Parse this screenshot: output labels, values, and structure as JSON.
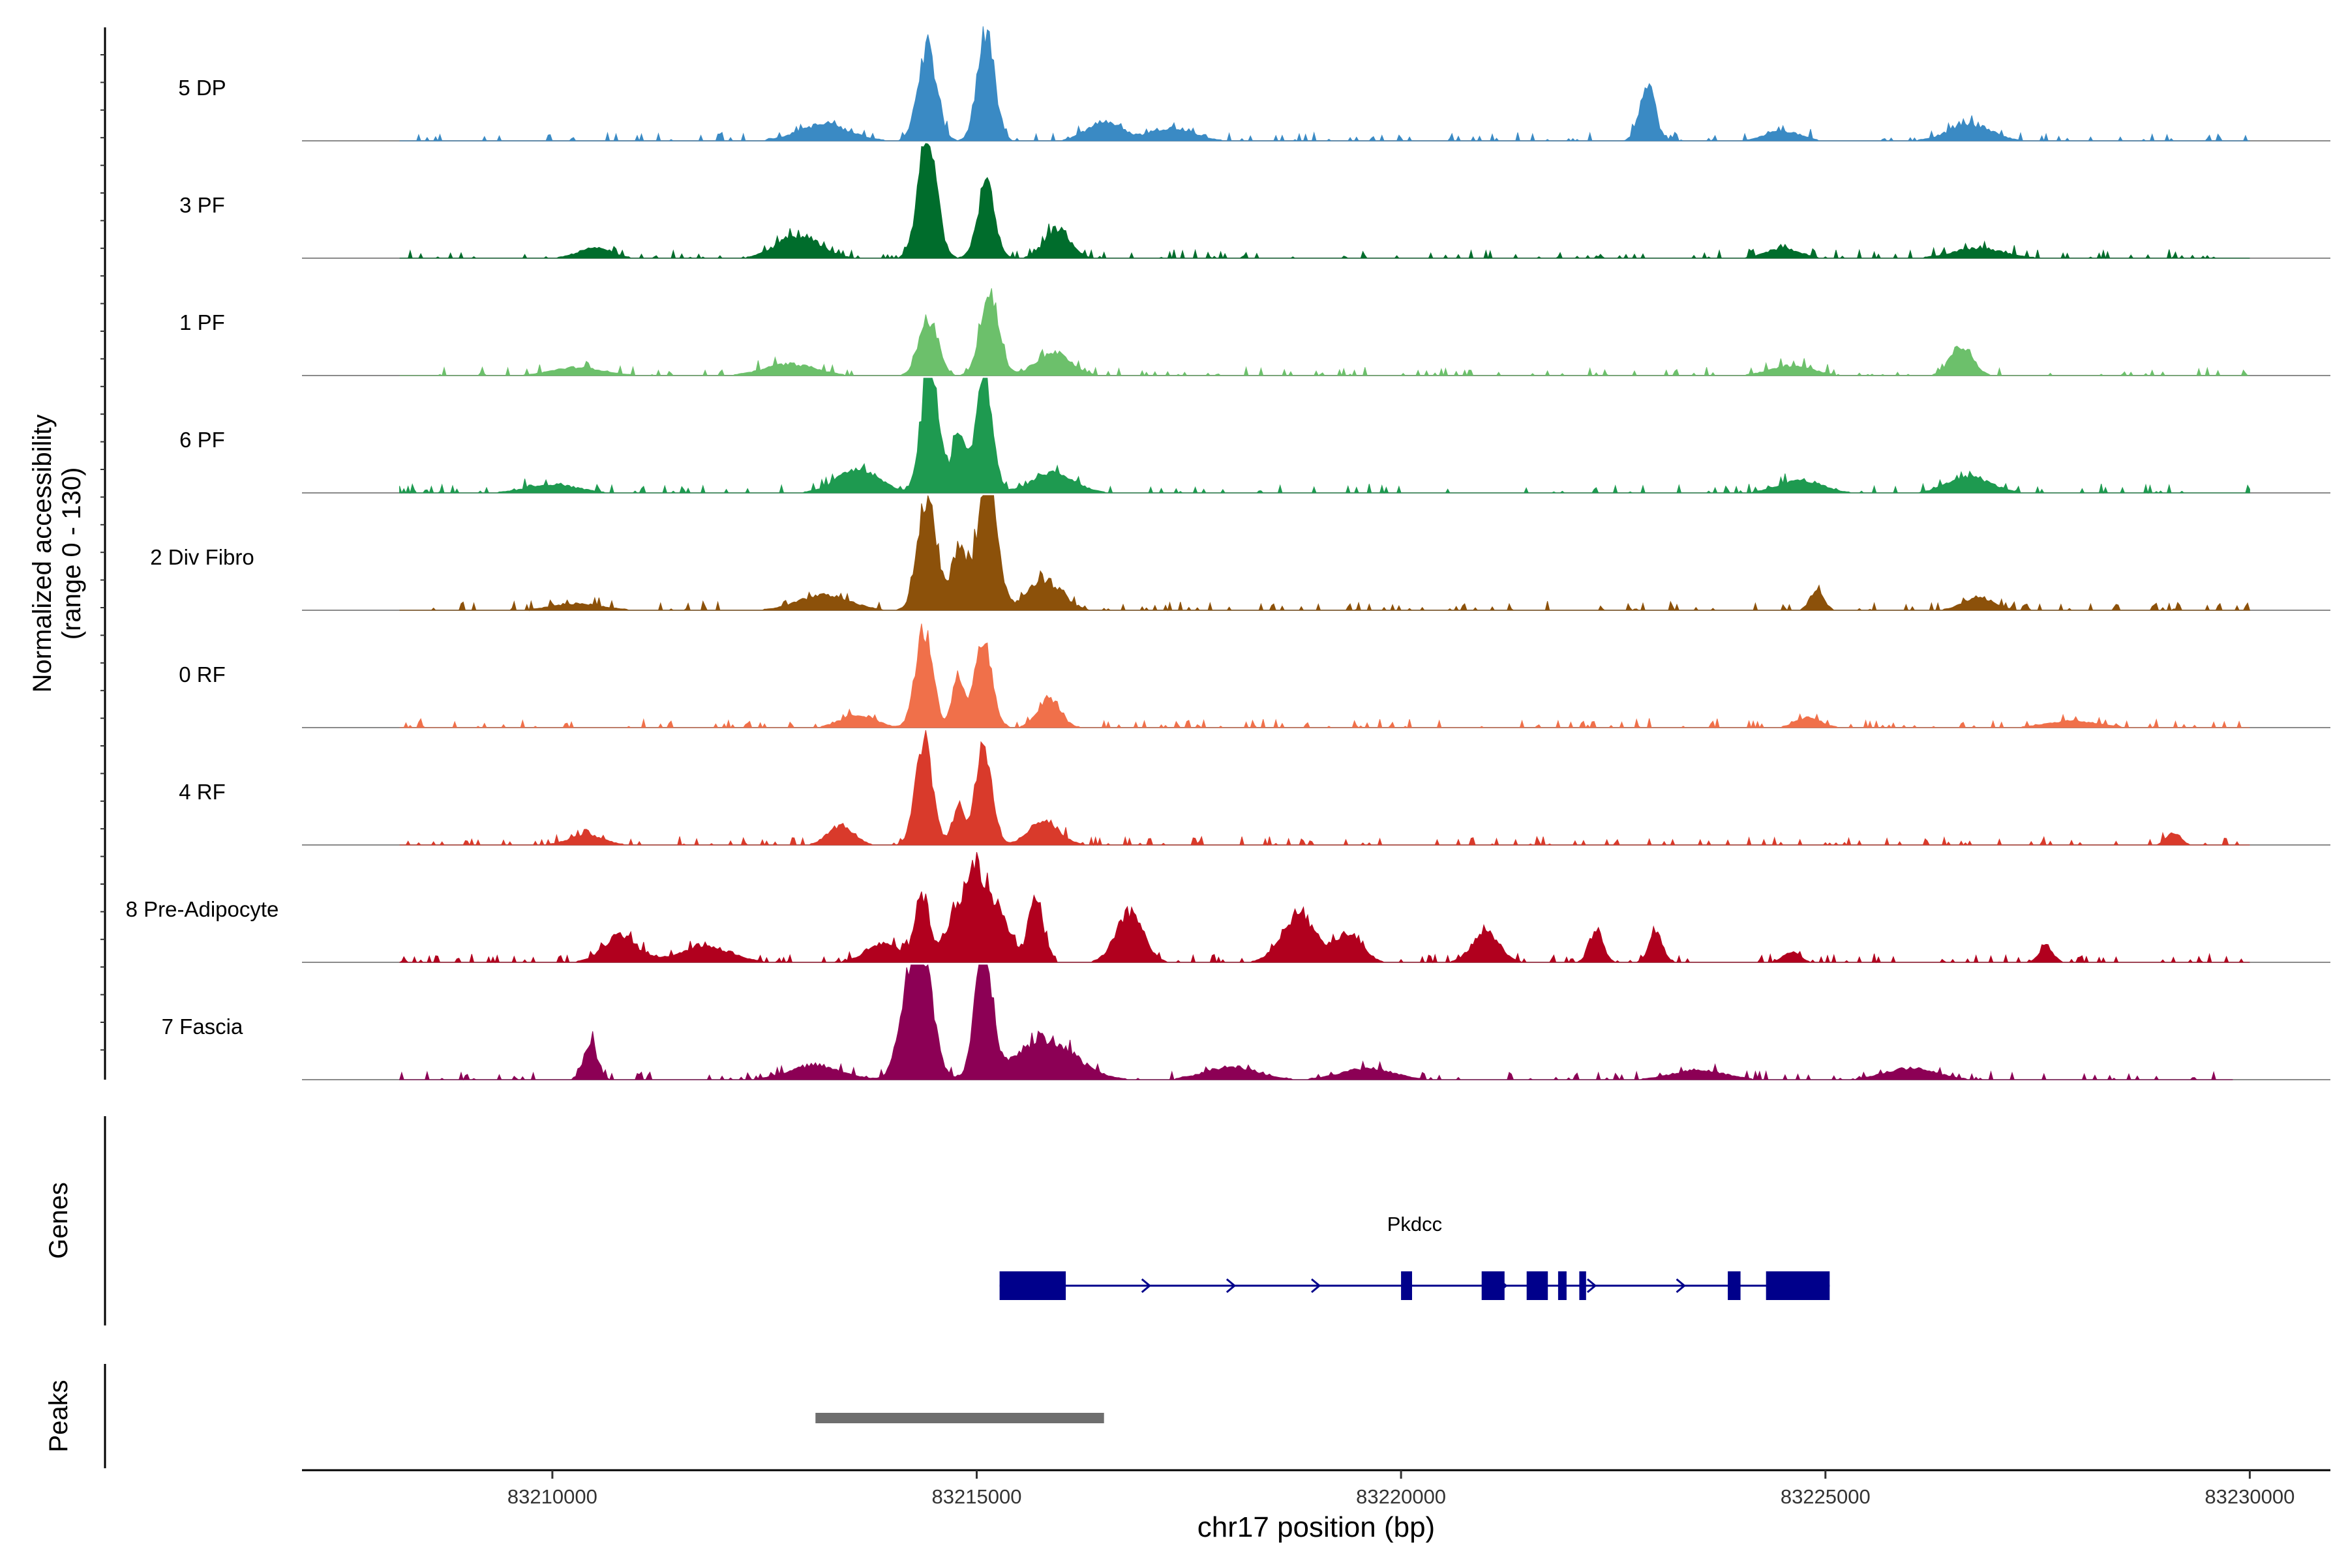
{
  "chart_data": {
    "type": "area",
    "title": "",
    "xlabel": "chr17 position (bp)",
    "ylabel": "Normalized accessibility\n(range 0 - 130)",
    "ylabel_line1": "Normalized accessibility",
    "ylabel_line2": "(range 0 - 130)",
    "xlim": [
      83207050,
      83230950
    ],
    "ylim": [
      0,
      130
    ],
    "x_ticks": [
      83210000,
      83215000,
      83220000,
      83225000,
      83230000
    ],
    "x_tick_labels": [
      "83210000",
      "83215000",
      "83220000",
      "83225000",
      "83230000"
    ],
    "tracks": [
      {
        "name": "5 DP",
        "color": "#3A8AC4",
        "range": [
          83208200,
          83230000
        ],
        "peaks": [
          [
            83214420,
            56,
            110
          ],
          [
            83215110,
            65,
            100
          ],
          [
            83222900,
            35,
            90
          ],
          [
            83216500,
            12,
            200
          ],
          [
            83217300,
            8,
            250
          ],
          [
            83213200,
            10,
            300
          ],
          [
            83224500,
            6,
            200
          ],
          [
            83226700,
            10,
            250
          ]
        ]
      },
      {
        "name": "3 PF",
        "color": "#006D2C",
        "range": [
          83208200,
          83230000
        ],
        "peaks": [
          [
            83214420,
            70,
            110
          ],
          [
            83215110,
            45,
            100
          ],
          [
            83215950,
            18,
            150
          ],
          [
            83212900,
            14,
            250
          ],
          [
            83210500,
            6,
            200
          ],
          [
            83224500,
            6,
            200
          ],
          [
            83226800,
            6,
            300
          ]
        ]
      },
      {
        "name": "1 PF",
        "color": "#6CC06B",
        "range": [
          83208200,
          83230000
        ],
        "peaks": [
          [
            83214430,
            35,
            110
          ],
          [
            83215150,
            50,
            110
          ],
          [
            83215900,
            14,
            200
          ],
          [
            83226600,
            18,
            130
          ],
          [
            83212800,
            7,
            300
          ],
          [
            83210300,
            5,
            300
          ],
          [
            83224600,
            6,
            250
          ]
        ]
      },
      {
        "name": "6 PF",
        "color": "#1E9A50",
        "range": [
          83208200,
          83230000
        ],
        "peaks": [
          [
            83214450,
            84,
            100
          ],
          [
            83215080,
            75,
            100
          ],
          [
            83214780,
            40,
            70
          ],
          [
            83213600,
            14,
            250
          ],
          [
            83215900,
            12,
            250
          ],
          [
            83210000,
            5,
            300
          ],
          [
            83224700,
            8,
            250
          ],
          [
            83226700,
            10,
            250
          ]
        ]
      },
      {
        "name": "2 Div Fibro",
        "color": "#8C510A",
        "range": [
          83208200,
          83230000
        ],
        "peaks": [
          [
            83214420,
            70,
            110
          ],
          [
            83215130,
            90,
            110
          ],
          [
            83214800,
            40,
            90
          ],
          [
            83215800,
            18,
            200
          ],
          [
            83213200,
            9,
            300
          ],
          [
            83224900,
            12,
            80
          ],
          [
            83226800,
            8,
            180
          ],
          [
            83210300,
            4,
            300
          ]
        ]
      },
      {
        "name": "0 RF",
        "color": "#F0704A",
        "range": [
          83208200,
          83230000
        ],
        "peaks": [
          [
            83214380,
            62,
            100
          ],
          [
            83215080,
            54,
            100
          ],
          [
            83214780,
            30,
            70
          ],
          [
            83215850,
            18,
            130
          ],
          [
            83213600,
            8,
            200
          ],
          [
            83224800,
            6,
            150
          ],
          [
            83227900,
            4,
            300
          ]
        ]
      },
      {
        "name": "4 RF",
        "color": "#D93A2B",
        "range": [
          83208200,
          83230000
        ],
        "peaks": [
          [
            83214380,
            66,
            100
          ],
          [
            83215080,
            58,
            100
          ],
          [
            83214780,
            22,
            70
          ],
          [
            83213400,
            12,
            150
          ],
          [
            83215800,
            14,
            180
          ],
          [
            83229100,
            8,
            80
          ],
          [
            83210400,
            6,
            200
          ]
        ]
      },
      {
        "name": "8 Pre-Adipocyte",
        "color": "#B1001E",
        "range": [
          83208200,
          83230000
        ],
        "peaks": [
          [
            83215000,
            56,
            250
          ],
          [
            83214350,
            40,
            80
          ],
          [
            83215700,
            42,
            80
          ],
          [
            83216800,
            30,
            160
          ],
          [
            83218800,
            30,
            200
          ],
          [
            83219400,
            18,
            150
          ],
          [
            83221000,
            18,
            160
          ],
          [
            83222300,
            20,
            80
          ],
          [
            83223000,
            18,
            80
          ],
          [
            83210800,
            16,
            200
          ],
          [
            83211800,
            10,
            300
          ],
          [
            83213900,
            12,
            200
          ],
          [
            83227600,
            10,
            80
          ],
          [
            83224600,
            6,
            100
          ]
        ]
      },
      {
        "name": "7 Fascia",
        "color": "#8C0055",
        "range": [
          83208200,
          83229800
        ],
        "peaks": [
          [
            83214300,
            92,
            150
          ],
          [
            83215080,
            82,
            100
          ],
          [
            83215800,
            25,
            350
          ],
          [
            83210450,
            22,
            80
          ],
          [
            83213100,
            9,
            300
          ],
          [
            83218000,
            8,
            300
          ],
          [
            83219600,
            7,
            300
          ],
          [
            83223500,
            6,
            300
          ],
          [
            83226000,
            7,
            300
          ]
        ]
      }
    ]
  },
  "genes": {
    "panel_label": "Genes",
    "name": "Pkdcc",
    "start": 83215270,
    "end": 83225050,
    "exons": [
      [
        83215270,
        83216050
      ],
      [
        83220000,
        83220130
      ],
      [
        83220950,
        83221220
      ],
      [
        83221480,
        83221730
      ],
      [
        83221850,
        83221950
      ],
      [
        83222100,
        83222180
      ],
      [
        83223850,
        83224000
      ],
      [
        83224300,
        83225050
      ]
    ],
    "arrows": [
      83216000,
      83217000,
      83218000,
      83219000,
      83221200,
      83222250,
      83223300
    ],
    "color": "#00008B"
  },
  "peaks": {
    "panel_label": "Peaks",
    "regions": [
      [
        83213100,
        83216500
      ]
    ],
    "color": "#6E6E6E"
  }
}
